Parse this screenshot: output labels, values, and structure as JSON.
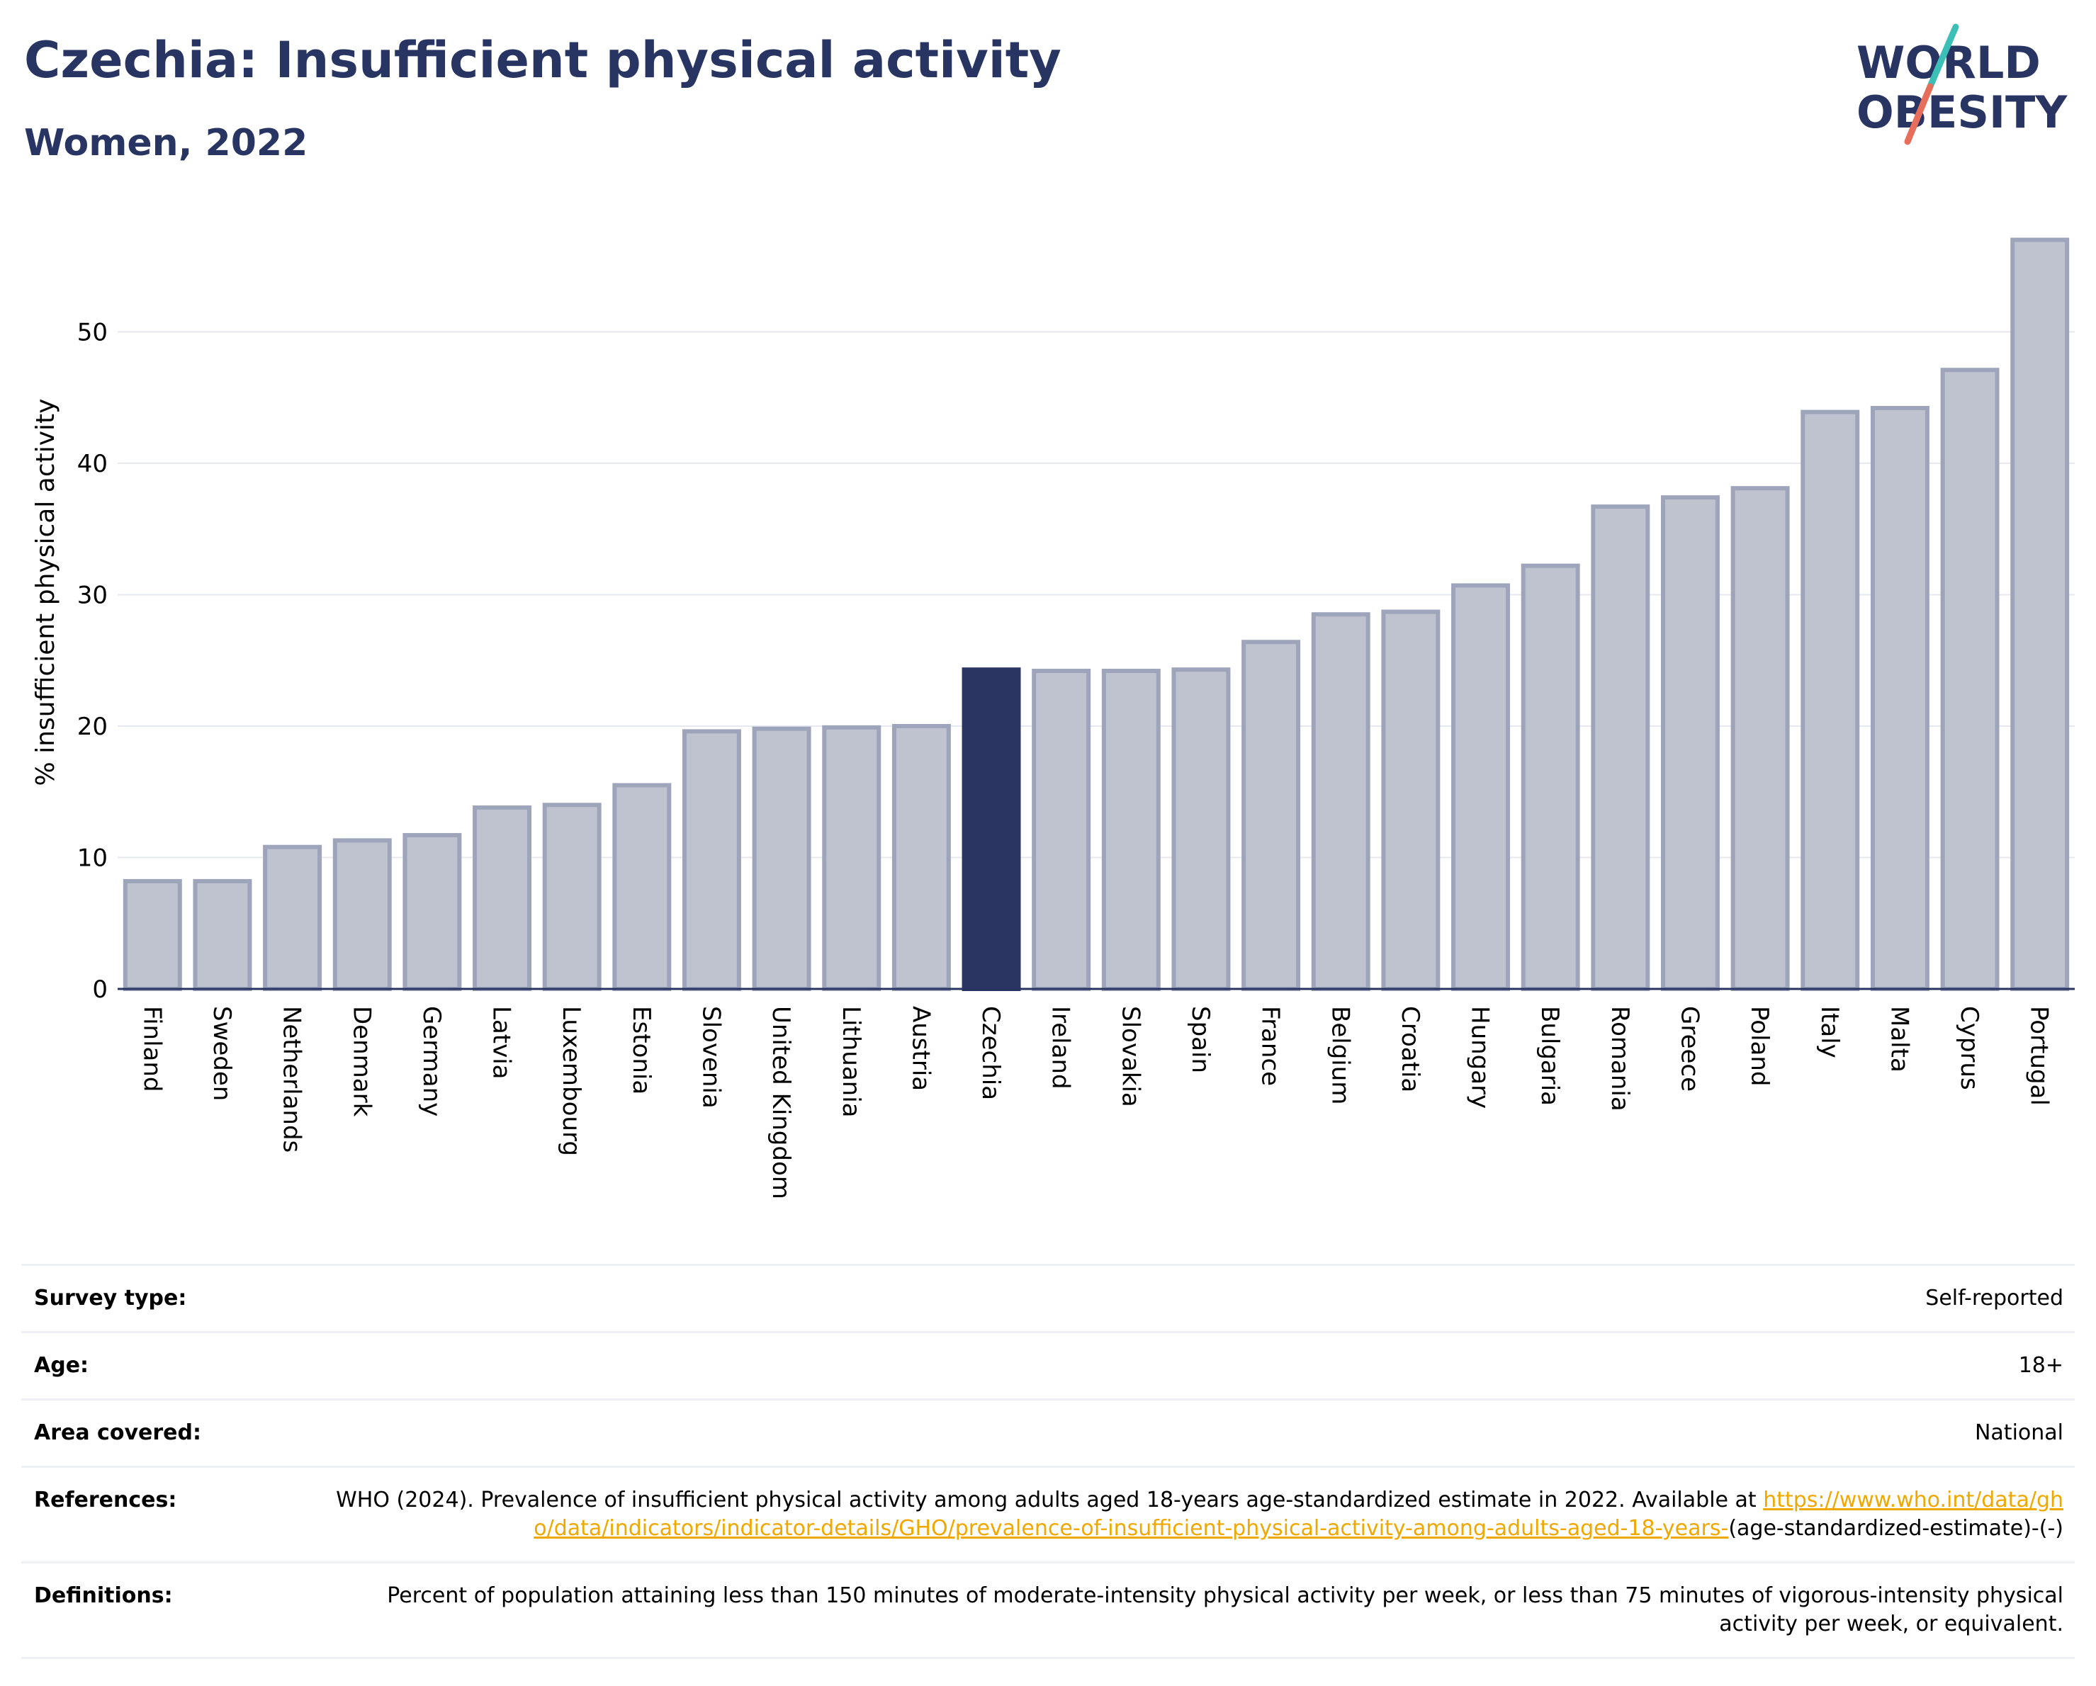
{
  "header": {
    "title": "Czechia: Insufficient physical activity",
    "subtitle": "Women, 2022"
  },
  "logo": {
    "line1": "WORLD",
    "line2": "OBESITY"
  },
  "colors": {
    "bar": "#bfc2cf",
    "bar_border": "#9ea4b9",
    "highlight": "#2b3561",
    "title": "#283462",
    "link": "#f0a800"
  },
  "chart_data": {
    "type": "bar",
    "ylabel": "% insufficient physical activity",
    "ylim": [
      0,
      58
    ],
    "yticks": [
      0,
      10,
      20,
      30,
      40,
      50
    ],
    "grid": true,
    "highlight": "Czechia",
    "categories": [
      "Finland",
      "Sweden",
      "Netherlands",
      "Denmark",
      "Germany",
      "Latvia",
      "Luxembourg",
      "Estonia",
      "Slovenia",
      "United Kingdom",
      "Lithuania",
      "Austria",
      "Czechia",
      "Ireland",
      "Slovakia",
      "Spain",
      "France",
      "Belgium",
      "Croatia",
      "Hungary",
      "Bulgaria",
      "Romania",
      "Greece",
      "Poland",
      "Italy",
      "Malta",
      "Cyprus",
      "Portugal"
    ],
    "values": [
      8.2,
      8.2,
      10.8,
      11.3,
      11.7,
      13.8,
      14.0,
      15.5,
      19.6,
      19.8,
      19.9,
      20.0,
      24.3,
      24.2,
      24.2,
      24.3,
      26.4,
      28.5,
      28.7,
      30.7,
      32.2,
      36.7,
      37.4,
      38.1,
      43.9,
      44.2,
      47.1,
      57.0
    ]
  },
  "info": {
    "survey_type": {
      "label": "Survey type:",
      "value": "Self-reported"
    },
    "age": {
      "label": "Age:",
      "value": "18+"
    },
    "area": {
      "label": "Area covered:",
      "value": "National"
    },
    "references": {
      "label": "References:",
      "text": "WHO (2024). Prevalence of insufficient physical activity among adults aged 18-years age-standardized estimate in 2022. Available at ",
      "link": "https://www.who.int/data/gho/data/indicators/indicator-details/GHO/prevalence-of-insufficient-physical-activity-among-adults-aged-18-years-",
      "suffix": "(age-standardized-estimate)-(-)"
    },
    "definitions": {
      "label": "Definitions:",
      "value": "Percent of population attaining less than 150 minutes of moderate-intensity physical activity per week, or less than 75 minutes of vigorous-intensity physical activity per week, or equivalent."
    }
  }
}
